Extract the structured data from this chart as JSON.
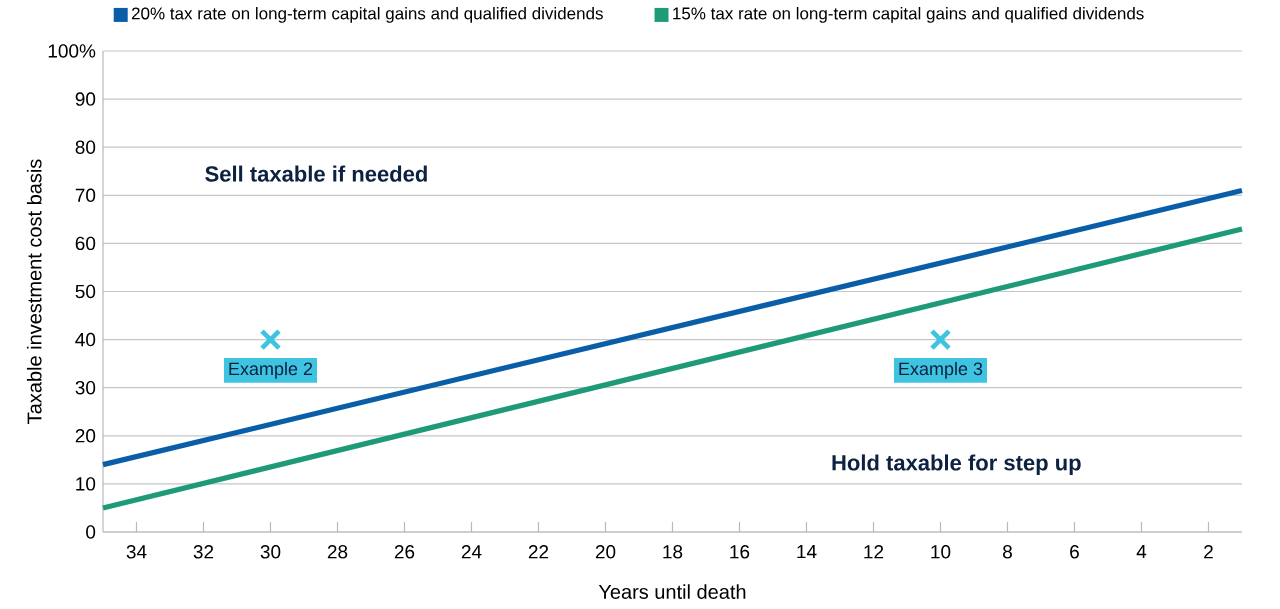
{
  "chart_data": {
    "type": "line",
    "xlabel": "Years until death",
    "ylabel": "Taxable investment cost basis",
    "xlim": [
      35,
      1
    ],
    "xticks": [
      34,
      32,
      30,
      28,
      26,
      24,
      22,
      20,
      18,
      16,
      14,
      12,
      10,
      8,
      6,
      4,
      2
    ],
    "ylim": [
      0,
      100
    ],
    "yticks": [
      0,
      10,
      20,
      30,
      40,
      50,
      60,
      70,
      80,
      90,
      {
        "value": 100,
        "label": "100%"
      }
    ],
    "grid": "y",
    "legend": "top left",
    "line_style": "solid",
    "series": [
      {
        "name": "20% tax rate on long-term capital gains and qualified dividends",
        "color": "#0a5ea8",
        "x": [
          35,
          1
        ],
        "values": [
          14,
          71
        ]
      },
      {
        "name": "15% tax rate on long-term capital gains and qualified dividends",
        "color": "#1f9a78",
        "x": [
          35,
          1
        ],
        "values": [
          5,
          63
        ]
      },
      {
        "type": "scatter",
        "marker": "cross",
        "color": "#3ec3e0",
        "x": [
          30,
          10
        ],
        "values": [
          40,
          40
        ]
      }
    ],
    "annotations": [
      "Sell taxable if needed",
      "Hold taxable for step up",
      {
        "text": "Example 2",
        "x": 30,
        "y": 40
      },
      {
        "text": "Example 3",
        "x": 10,
        "y": 40
      }
    ]
  }
}
